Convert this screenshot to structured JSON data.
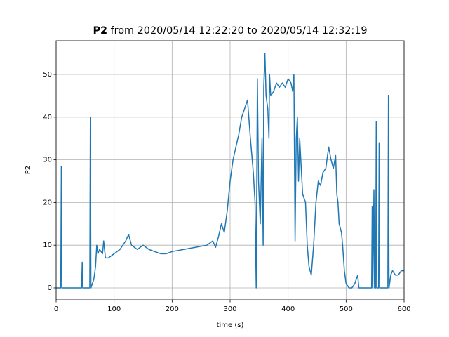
{
  "chart_data": {
    "type": "line",
    "title_name": "P2",
    "title_rest": "from 2020/05/14 12:22:20 to 2020/05/14 12:32:19",
    "xlabel": "time (s)",
    "ylabel": "P2",
    "xlim": [
      0,
      600
    ],
    "ylim": [
      -2.8,
      57.9
    ],
    "xticks": [
      0,
      100,
      200,
      300,
      400,
      500,
      600
    ],
    "yticks": [
      0,
      10,
      20,
      30,
      40,
      50
    ],
    "grid": true,
    "series": [
      {
        "color": "#1f77b4",
        "x": [
          0,
          8,
          9,
          10,
          44,
          45,
          46,
          58,
          59,
          60,
          65,
          68,
          70,
          72,
          75,
          80,
          82,
          85,
          90,
          100,
          110,
          120,
          125,
          130,
          140,
          150,
          160,
          170,
          180,
          190,
          200,
          220,
          240,
          260,
          270,
          275,
          280,
          285,
          290,
          295,
          300,
          305,
          310,
          315,
          320,
          325,
          330,
          335,
          340,
          343,
          345,
          347,
          349,
          352,
          355,
          357,
          358,
          360,
          362,
          365,
          367,
          368,
          370,
          375,
          380,
          385,
          390,
          395,
          400,
          405,
          408,
          410,
          412,
          414,
          416,
          418,
          420,
          425,
          430,
          433,
          436,
          440,
          444,
          448,
          452,
          456,
          460,
          465,
          470,
          474,
          478,
          482,
          484,
          486,
          488,
          492,
          494,
          497,
          500,
          505,
          510,
          515,
          520,
          522,
          530,
          544,
          545,
          546,
          548,
          549,
          551,
          552,
          553,
          556,
          557,
          558,
          572,
          573,
          574,
          577,
          580,
          585,
          590,
          595,
          600
        ],
        "values": [
          0,
          0,
          28.5,
          0,
          0,
          6,
          0,
          0,
          40,
          0,
          2,
          5,
          10,
          8,
          9,
          8,
          11,
          7,
          7,
          8,
          9,
          11,
          12.5,
          10,
          9,
          10,
          9,
          8.5,
          8,
          8,
          8.5,
          9,
          9.5,
          10,
          11,
          9.5,
          12,
          15,
          13,
          18,
          25,
          30,
          33,
          36,
          40,
          42,
          44,
          35,
          27,
          20,
          0,
          49,
          25,
          15,
          35,
          10,
          47,
          55,
          45,
          42,
          35,
          50,
          45,
          46,
          48,
          47,
          48,
          47,
          49,
          48,
          46,
          50,
          11,
          35,
          40,
          25,
          35,
          22,
          20,
          10,
          5,
          3,
          10,
          20,
          25,
          24,
          27,
          28,
          33,
          30,
          28,
          31,
          22,
          20,
          15,
          13,
          10,
          4,
          1,
          0,
          0,
          1,
          3,
          0,
          0,
          0,
          19,
          0,
          23,
          0,
          0,
          39,
          0,
          0,
          34,
          0,
          0,
          45,
          0,
          3,
          4,
          3,
          3,
          4,
          4
        ]
      }
    ]
  }
}
